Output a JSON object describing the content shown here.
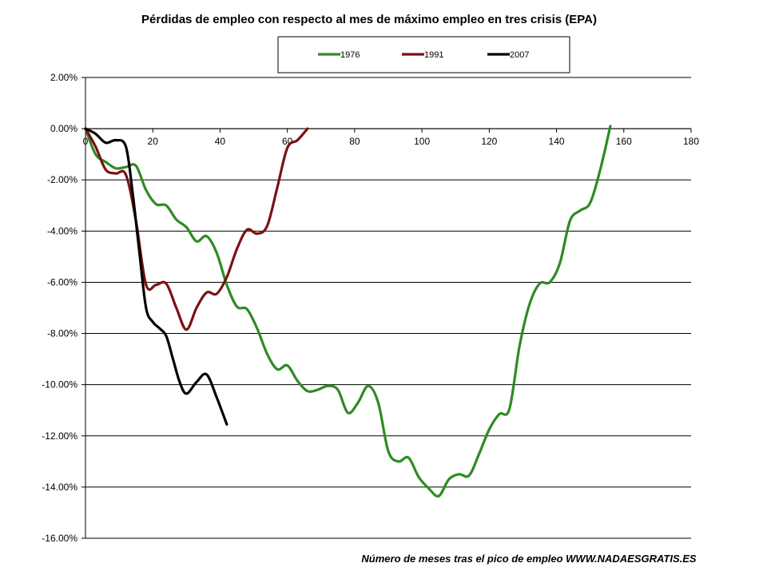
{
  "chart_data": {
    "type": "line",
    "title": "Pérdidas de empleo con respecto al mes de máximo empleo en tres crisis (EPA)",
    "xlabel": "Número de meses tras el pico de empleo WWW.NADAESGRATIS.ES",
    "ylabel": "",
    "xlim": [
      0,
      180
    ],
    "ylim": [
      -16,
      2
    ],
    "xticks": [
      0,
      20,
      40,
      60,
      80,
      100,
      120,
      140,
      160,
      180
    ],
    "xtick_labels": [
      "0",
      "20",
      "40",
      "60",
      "80",
      "100",
      "120",
      "140",
      "160",
      "180"
    ],
    "yticks": [
      2,
      0,
      -2,
      -4,
      -6,
      -8,
      -10,
      -12,
      -14,
      -16
    ],
    "ytick_labels": [
      "2.00%",
      "0.00%",
      "-2.00%",
      "-4.00%",
      "-6.00%",
      "-8.00%",
      "-10.00%",
      "-12.00%",
      "-14.00%",
      "-16.00%"
    ],
    "grid": "horizontal",
    "legend_position": "top-center",
    "series": [
      {
        "name": "1976",
        "color": "#2e8b22",
        "x": [
          0,
          3,
          6,
          9,
          12,
          15,
          18,
          21,
          24,
          27,
          30,
          33,
          36,
          39,
          42,
          45,
          48,
          51,
          54,
          57,
          60,
          63,
          66,
          69,
          72,
          75,
          78,
          81,
          84,
          87,
          90,
          93,
          96,
          99,
          102,
          105,
          108,
          111,
          114,
          117,
          120,
          123,
          126,
          129,
          132,
          135,
          138,
          141,
          144,
          147,
          150,
          153,
          156
        ],
        "values": [
          0,
          -1.0,
          -1.3,
          -1.55,
          -1.5,
          -1.45,
          -2.4,
          -2.95,
          -3.0,
          -3.55,
          -3.85,
          -4.4,
          -4.2,
          -4.85,
          -6.1,
          -6.95,
          -7.05,
          -7.8,
          -8.8,
          -9.4,
          -9.25,
          -9.85,
          -10.25,
          -10.2,
          -10.05,
          -10.2,
          -11.1,
          -10.7,
          -10.05,
          -10.7,
          -12.6,
          -13.0,
          -12.85,
          -13.6,
          -14.05,
          -14.35,
          -13.7,
          -13.5,
          -13.55,
          -12.7,
          -11.75,
          -11.15,
          -10.95,
          -8.5,
          -6.85,
          -6.05,
          -6.0,
          -5.25,
          -3.6,
          -3.2,
          -2.9,
          -1.6,
          0.1
        ]
      },
      {
        "name": "1991",
        "color": "#7b1113",
        "x": [
          0,
          3,
          6,
          9,
          12,
          15,
          18,
          21,
          24,
          27,
          30,
          33,
          36,
          39,
          42,
          45,
          48,
          51,
          54,
          57,
          60,
          63,
          66
        ],
        "values": [
          0,
          -0.7,
          -1.6,
          -1.75,
          -1.8,
          -3.6,
          -6.1,
          -6.1,
          -6.05,
          -7.0,
          -7.85,
          -7.0,
          -6.4,
          -6.45,
          -5.8,
          -4.7,
          -3.95,
          -4.1,
          -3.8,
          -2.3,
          -0.75,
          -0.45,
          0.0
        ]
      },
      {
        "name": "2007",
        "color": "#000000",
        "x": [
          0,
          3,
          6,
          9,
          12,
          14,
          16,
          18,
          20,
          22,
          24,
          26,
          28,
          30,
          33,
          36,
          39,
          42
        ],
        "values": [
          0,
          -0.2,
          -0.55,
          -0.45,
          -0.7,
          -2.5,
          -4.8,
          -7.0,
          -7.55,
          -7.8,
          -8.1,
          -9.0,
          -9.9,
          -10.35,
          -9.9,
          -9.6,
          -10.5,
          -11.55
        ]
      }
    ]
  }
}
